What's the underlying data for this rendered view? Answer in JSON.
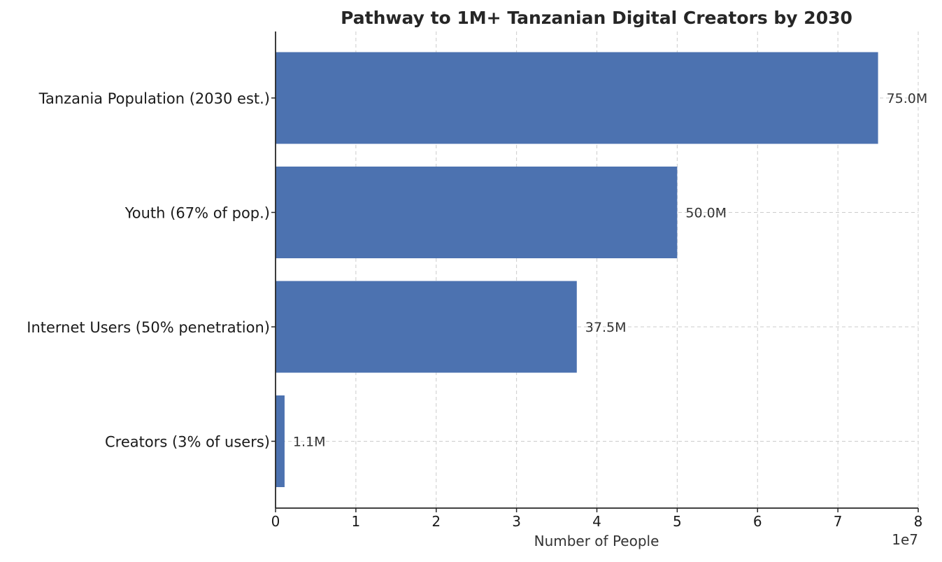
{
  "chart_data": {
    "type": "bar",
    "orientation": "horizontal",
    "title": "Pathway to 1M+ Tanzanian Digital Creators by 2030",
    "xlabel": "Number of People",
    "ylabel": "",
    "x_offset_label": "1e7",
    "categories": [
      "Tanzania Population (2030 est.)",
      "Youth (67% of pop.)",
      "Internet Users (50% penetration)",
      "Creators (3% of users)"
    ],
    "values": [
      75000000,
      50000000,
      37500000,
      1125000
    ],
    "value_labels": [
      "75.0M",
      "50.0M",
      "37.5M",
      "1.1M"
    ],
    "xlim": [
      0,
      80000000
    ],
    "xticks": [
      0,
      10000000,
      20000000,
      30000000,
      40000000,
      50000000,
      60000000,
      70000000,
      80000000
    ],
    "xtick_labels": [
      "0",
      "1",
      "2",
      "3",
      "4",
      "5",
      "6",
      "7",
      "8"
    ],
    "grid": true,
    "colors": {
      "bar": "#4c72b0",
      "axis": "#262626"
    }
  }
}
